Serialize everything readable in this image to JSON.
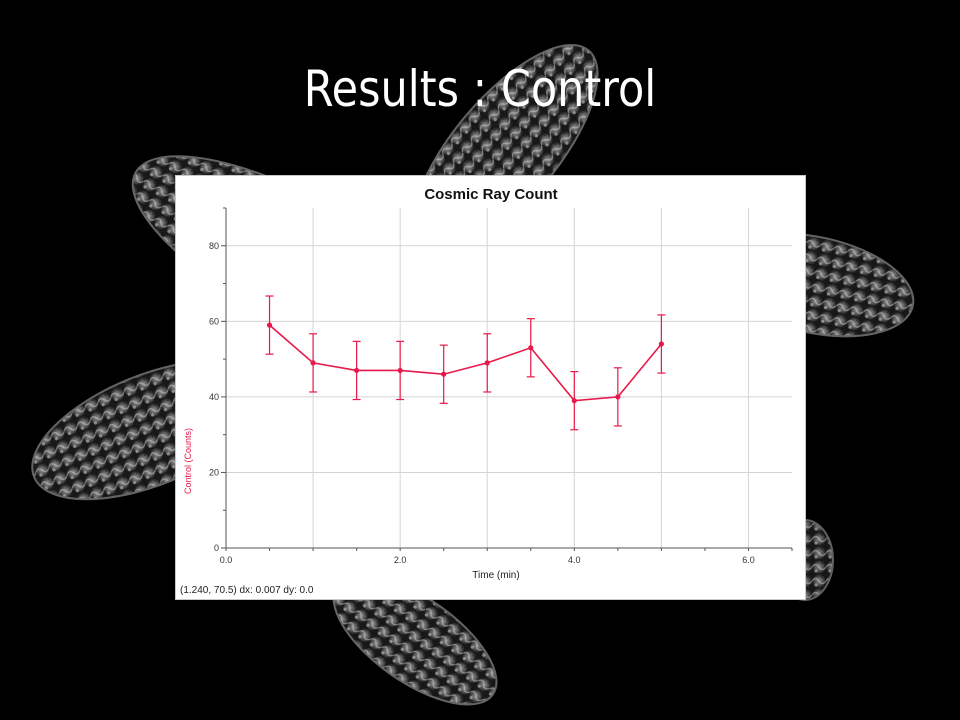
{
  "slide": {
    "title": "Results : Control"
  },
  "status_readout": "(1.240, 70.5) dx: 0.007 dy: 0.0",
  "colors": {
    "background": "#000000",
    "series": "#e8194a",
    "grid": "#d4d4d4",
    "axis": "#555555"
  },
  "chart_data": {
    "type": "line",
    "title": "Cosmic Ray Count",
    "xlabel": "Time (min)",
    "ylabel": "Control (Counts)",
    "xlim": [
      0,
      6.5
    ],
    "ylim": [
      0,
      90
    ],
    "x_ticks": [
      0,
      2,
      4,
      6
    ],
    "x_tick_labels": [
      "0.0",
      "2.0",
      "4.0",
      "6.0"
    ],
    "y_ticks": [
      0,
      20,
      40,
      60,
      80
    ],
    "y_tick_labels": [
      "0",
      "20",
      "40",
      "60",
      "80"
    ],
    "grid": true,
    "series": [
      {
        "x": [
          0.5,
          1.0,
          1.5,
          2.0,
          2.5,
          3.0,
          3.5,
          4.0,
          4.5,
          5.0
        ],
        "values": [
          59,
          49,
          47,
          47,
          46,
          49,
          53,
          39,
          40,
          54
        ],
        "error": [
          7.7,
          7.7,
          7.7,
          7.7,
          7.7,
          7.7,
          7.7,
          7.7,
          7.7,
          7.7
        ]
      }
    ]
  }
}
